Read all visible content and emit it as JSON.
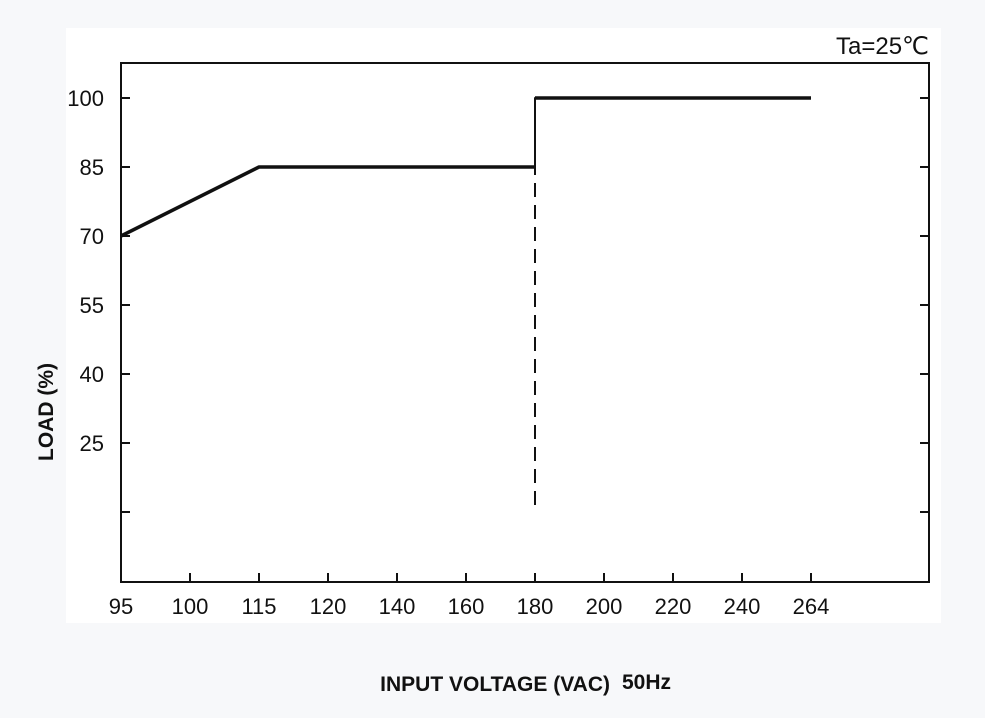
{
  "chart_data": {
    "type": "line",
    "annotation": "Ta=25℃",
    "xlabel": "INPUT VOLTAGE (VAC)",
    "xlabel_suffix": "50Hz",
    "ylabel": "LOAD (%)",
    "x_ticks": [
      "95",
      "100",
      "115",
      "120",
      "140",
      "160",
      "180",
      "200",
      "220",
      "240",
      "264"
    ],
    "y_ticks": [
      "100",
      "85",
      "70",
      "55",
      "40",
      "25",
      ""
    ],
    "grid": false,
    "series": [
      {
        "points": [
          {
            "x": "95",
            "y": 70
          },
          {
            "x": "115",
            "y": 85
          },
          {
            "x": "180",
            "y": 85
          }
        ],
        "style": "solid",
        "color": "#111111"
      },
      {
        "points": [
          {
            "x": "180",
            "y": 100
          },
          {
            "x": "264",
            "y": 100
          }
        ],
        "style": "solid",
        "color": "#111111"
      },
      {
        "points": [
          {
            "x": "180",
            "y": 85
          },
          {
            "x": "180",
            "y": 100
          },
          {
            "x": "180",
            "y": 10
          }
        ],
        "style": "dashed",
        "color": "#111111"
      }
    ]
  }
}
